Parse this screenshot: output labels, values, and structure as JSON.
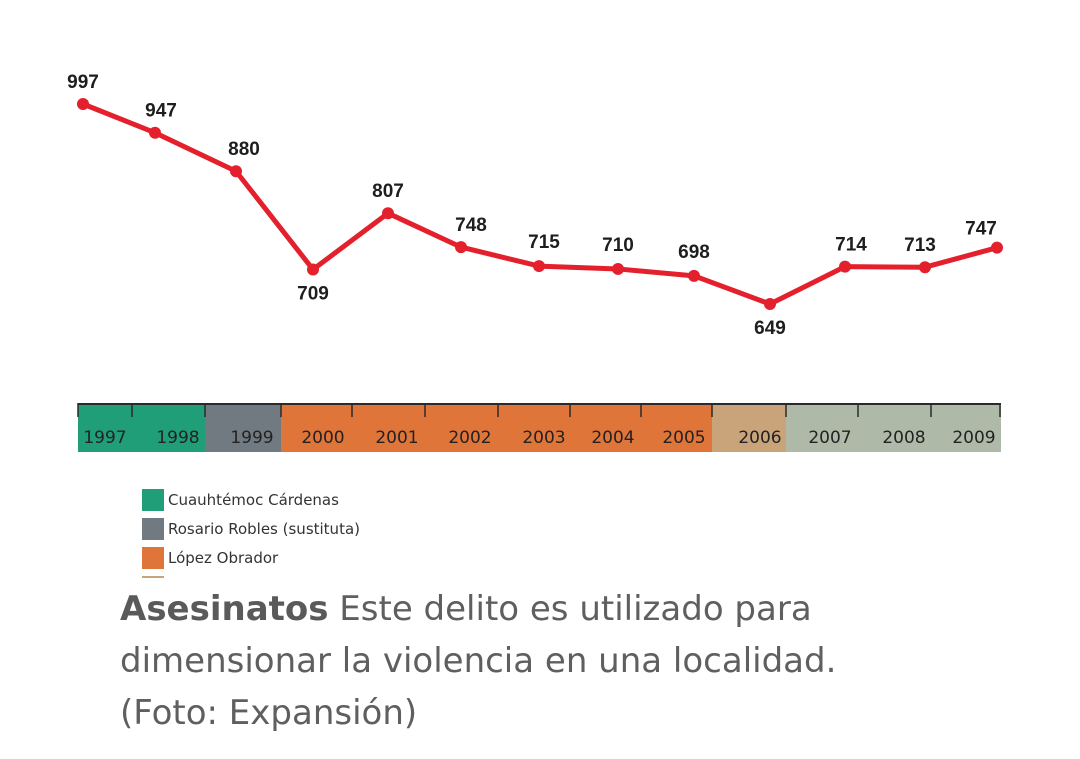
{
  "chart_data": {
    "type": "line",
    "x": [
      "1997",
      "1998",
      "1999",
      "2000",
      "2001",
      "2002",
      "2003",
      "2004",
      "2005",
      "2006",
      "2007",
      "2008",
      "2009"
    ],
    "series": [
      {
        "values": [
          997,
          947,
          880,
          709,
          807,
          748,
          715,
          710,
          698,
          649,
          714,
          713,
          747
        ],
        "color": "#e3202c"
      }
    ],
    "title": "",
    "xlabel": "",
    "ylabel": "",
    "grid": false,
    "period_bar": [
      {
        "years": [
          "1997",
          "1998"
        ],
        "color": "#1f9e78"
      },
      {
        "years": [
          "1999"
        ],
        "color": "#707a80"
      },
      {
        "years": [
          "2000",
          "2001",
          "2002",
          "2003",
          "2004",
          "2005"
        ],
        "color": "#e0753a"
      },
      {
        "years": [
          "2006"
        ],
        "color": "#c9a47a"
      },
      {
        "years": [
          "2007",
          "2008",
          "2009"
        ],
        "color": "#aeb9a8"
      }
    ]
  },
  "legend": [
    {
      "label": "Cuauhtémoc Cárdenas",
      "color": "#1f9e78"
    },
    {
      "label": "Rosario Robles (sustituta)",
      "color": "#707a80"
    },
    {
      "label": "López Obrador",
      "color": "#e0753a"
    },
    {
      "label": "",
      "color": "#c9a47a"
    }
  ],
  "caption": {
    "title": "Asesinatos",
    "text": "  Este delito es utilizado para dimensionar la violencia en una localidad.",
    "credit": " (Foto: Expansión)"
  }
}
